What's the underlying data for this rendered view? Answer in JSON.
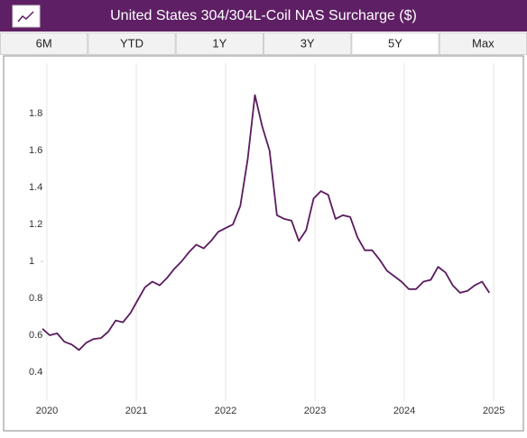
{
  "tabs": [
    {
      "label": "6M"
    },
    {
      "label": "YTD"
    },
    {
      "label": "1Y"
    },
    {
      "label": "3Y"
    },
    {
      "label": "5Y",
      "selected": true
    },
    {
      "label": "Max"
    }
  ],
  "chart_data": {
    "type": "line",
    "title": "United States 304/304L-Coil NAS Surcharge ($)",
    "x": [
      2019.95,
      2020.032,
      2020.114,
      2020.196,
      2020.278,
      2020.36,
      2020.442,
      2020.524,
      2020.606,
      2020.688,
      2020.77,
      2020.852,
      2020.934,
      2021.016,
      2021.098,
      2021.18,
      2021.262,
      2021.344,
      2021.426,
      2021.508,
      2021.59,
      2021.672,
      2021.754,
      2021.836,
      2021.918,
      2022.0,
      2022.082,
      2022.164,
      2022.246,
      2022.328,
      2022.41,
      2022.492,
      2022.574,
      2022.656,
      2022.738,
      2022.82,
      2022.902,
      2022.984,
      2023.066,
      2023.148,
      2023.23,
      2023.312,
      2023.394,
      2023.476,
      2023.558,
      2023.64,
      2023.722,
      2023.804,
      2023.886,
      2023.968,
      2024.05,
      2024.132,
      2024.214,
      2024.296,
      2024.378,
      2024.46,
      2024.542,
      2024.624,
      2024.706,
      2024.788,
      2024.87,
      2024.952
    ],
    "series": [
      {
        "color": "#5a1a5e",
        "values": [
          0.635,
          0.6,
          0.61,
          0.565,
          0.55,
          0.52,
          0.56,
          0.58,
          0.585,
          0.62,
          0.68,
          0.67,
          0.72,
          0.79,
          0.86,
          0.89,
          0.87,
          0.91,
          0.96,
          1.0,
          1.05,
          1.09,
          1.07,
          1.11,
          1.16,
          1.18,
          1.2,
          1.3,
          1.55,
          1.9,
          1.73,
          1.6,
          1.25,
          1.23,
          1.22,
          1.11,
          1.17,
          1.34,
          1.38,
          1.36,
          1.23,
          1.25,
          1.24,
          1.13,
          1.06,
          1.06,
          1.01,
          0.95,
          0.92,
          0.89,
          0.85,
          0.85,
          0.89,
          0.9,
          0.97,
          0.94,
          0.87,
          0.83,
          0.84,
          0.87,
          0.89,
          0.83
        ]
      }
    ],
    "xlim": [
      2019.96,
      2025.1
    ],
    "xticks": [
      2020,
      2021,
      2022,
      2023,
      2024,
      2025
    ],
    "ylim": [
      0.3,
      2.0
    ],
    "yticks": [
      0.4,
      0.6,
      0.8,
      1,
      1.2,
      1.4,
      1.6,
      1.8
    ],
    "grid": true
  }
}
